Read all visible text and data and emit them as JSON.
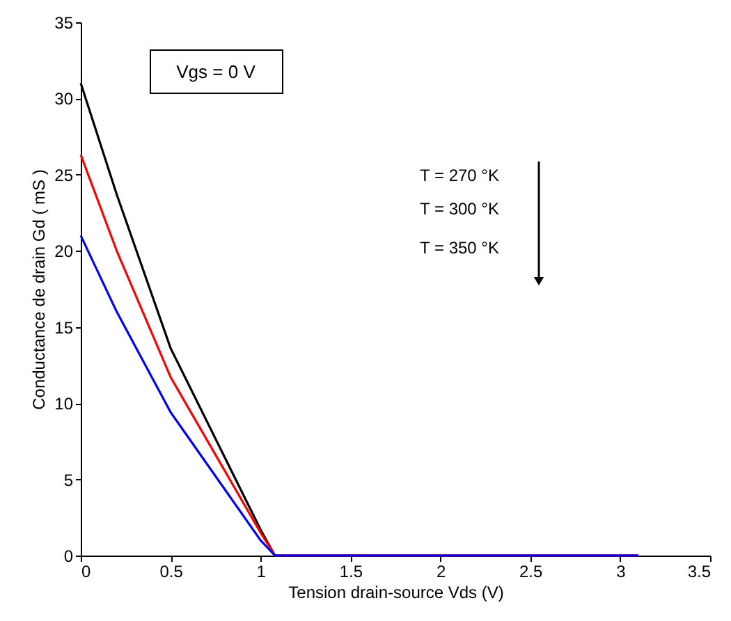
{
  "chart_data": {
    "type": "line",
    "xlabel": "Tension drain-source Vds (V)",
    "ylabel": "Conductance de drain Gd ( mS )",
    "annotations": [
      "Vgs = 0 V",
      "T = 270 °K",
      "T = 300 °K",
      "T = 350 °K"
    ],
    "x": [
      0,
      0.2,
      0.5,
      1.0,
      1.08,
      3.1
    ],
    "series": [
      {
        "color": "#000000",
        "values": [
          31,
          23.7,
          13.6,
          1.7,
          0,
          0
        ]
      },
      {
        "color": "#ff0000",
        "values": [
          26.3,
          20,
          11.7,
          1.5,
          0,
          0
        ]
      },
      {
        "color": "#0000ff",
        "values": [
          21,
          16,
          9.4,
          1.0,
          0,
          0
        ]
      }
    ],
    "xlim": [
      0,
      3.5
    ],
    "xticks": [
      0,
      0.5,
      1,
      1.5,
      2,
      2.5,
      3,
      3.5
    ],
    "ylim": [
      0,
      35
    ],
    "yticks": [
      0,
      5,
      10,
      15,
      20,
      25,
      30,
      35
    ],
    "grid": false,
    "marker": "none",
    "line_style": "solid"
  }
}
